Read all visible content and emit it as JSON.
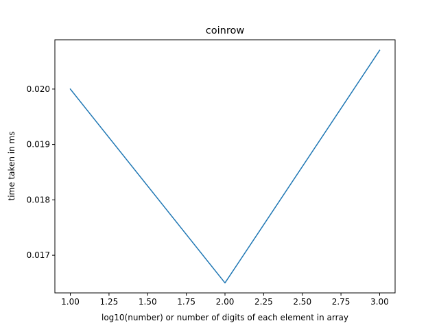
{
  "chart_data": {
    "type": "line",
    "title": "coinrow",
    "xlabel": "log10(number) or number of digits of each element in array",
    "ylabel": "time taken in ms",
    "xlim": [
      0.9,
      3.1
    ],
    "ylim": [
      0.01632,
      0.02089
    ],
    "xticks": [
      1.0,
      1.25,
      1.5,
      1.75,
      2.0,
      2.25,
      2.5,
      2.75,
      3.0
    ],
    "xtick_labels": [
      "1.00",
      "1.25",
      "1.50",
      "1.75",
      "2.00",
      "2.25",
      "2.50",
      "2.75",
      "3.00"
    ],
    "yticks": [
      0.017,
      0.018,
      0.019,
      0.02
    ],
    "ytick_labels": [
      "0.017",
      "0.018",
      "0.019",
      "0.020"
    ],
    "grid": false,
    "series": [
      {
        "color": "#1f77b4",
        "x": [
          1,
          2,
          3
        ],
        "y": [
          0.02,
          0.0165,
          0.0207
        ]
      }
    ]
  }
}
